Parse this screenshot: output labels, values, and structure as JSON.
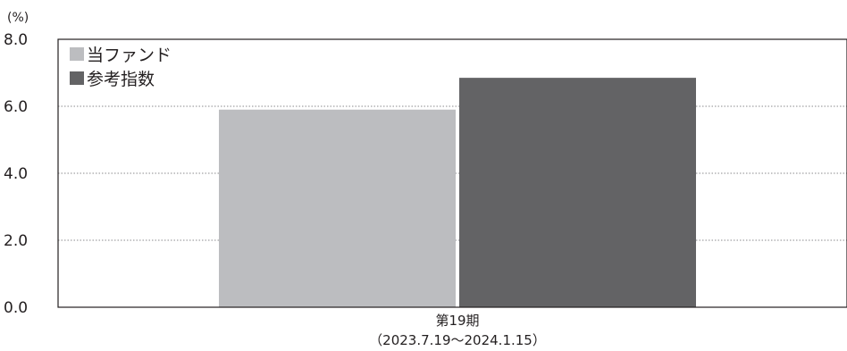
{
  "chart_data": {
    "type": "bar",
    "unit_label": "(%)",
    "ylim": [
      0,
      8
    ],
    "yticks": [
      "8.0",
      "6.0",
      "4.0",
      "2.0",
      "0.0"
    ],
    "grid": "dotted horizontal",
    "legend_position": "top-left",
    "categories": [
      {
        "name": "第19期",
        "period": "（2023.7.19～2024.1.15）"
      }
    ],
    "series": [
      {
        "name": "当ファンド",
        "color": "#bcbdc0",
        "values": [
          5.9
        ]
      },
      {
        "name": "参考指数",
        "color": "#636365",
        "values": [
          6.85
        ]
      }
    ]
  }
}
